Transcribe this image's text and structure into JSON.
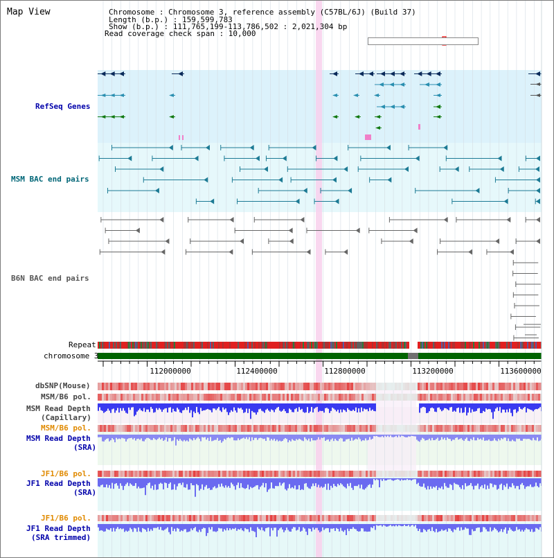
{
  "view_title": "Map View",
  "info": {
    "chromosome": "Chromosome      : Chromosome 3, reference assembly (C57BL/6J) (Build 37)",
    "length": "Length (b.p.) : 159,599,783",
    "show": "Show (b.p.) : 111,765,199-113,786,502 : 2,021,304 bp",
    "coverage": "Read coverage check span : 10,000"
  },
  "tracks": {
    "refseq": "RefSeq Genes",
    "msm_bac": "MSM BAC end pairs",
    "b6n_bac": "B6N BAC end pairs",
    "repeat": "Repeat",
    "chromosome": "chromosome 3",
    "dbsnp": "dbSNP(Mouse)",
    "msm_b6_pol_1": "MSM/B6 pol.",
    "msm_depth_cap_1": "MSM Read Depth",
    "msm_depth_cap_2": "(Capillary)",
    "msm_b6_pol_2": "MSM/B6 pol.",
    "msm_depth_sra_1": "MSM Read Depth",
    "msm_depth_sra_2": "(SRA)",
    "jf1_b6_pol_1": "JF1/B6 pol.",
    "jf1_depth_sra_1": "JF1 Read Depth",
    "jf1_depth_sra_2": "(SRA)",
    "jf1_b6_pol_2": "JF1/B6 pol.",
    "jf1_depth_trim_1": "JF1 Read Depth",
    "jf1_depth_trim_2": "(SRA trimmed)"
  },
  "axis": {
    "ticks": [
      "112000000",
      "112400000",
      "112800000",
      "113200000",
      "113600000"
    ]
  },
  "colors": {
    "refseq_bg": "#dcf2fb",
    "bac_bg": "#e6f8fb",
    "highlight": "#f8d0ec",
    "chrom_green": "#006400",
    "depth_blue": "#4a4aee",
    "label_blue": "#0000aa",
    "label_orange": "#e08a00"
  }
}
